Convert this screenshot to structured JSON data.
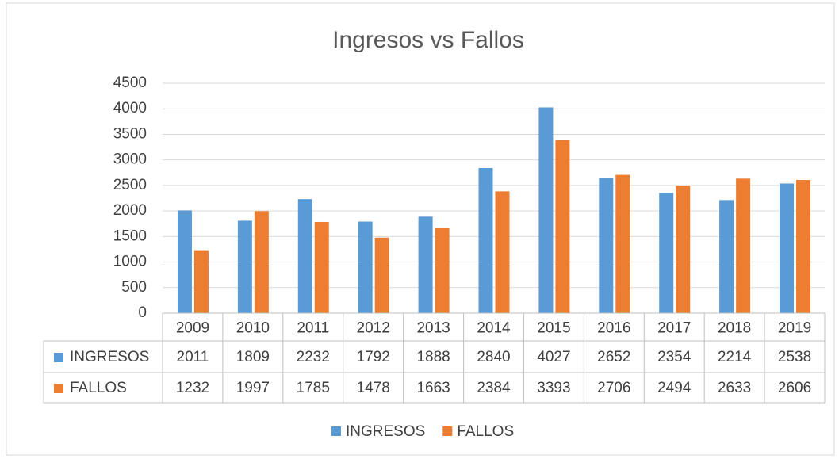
{
  "chart_data": {
    "type": "bar",
    "title": "Ingresos vs Fallos",
    "categories": [
      "2009",
      "2010",
      "2011",
      "2012",
      "2013",
      "2014",
      "2015",
      "2016",
      "2017",
      "2018",
      "2019"
    ],
    "series": [
      {
        "name": "INGRESOS",
        "color": "#5b9bd5",
        "values": [
          2011,
          1809,
          2232,
          1792,
          1888,
          2840,
          4027,
          2652,
          2354,
          2214,
          2538
        ]
      },
      {
        "name": "FALLOS",
        "color": "#ed7d31",
        "values": [
          1232,
          1997,
          1785,
          1478,
          1663,
          2384,
          3393,
          2706,
          2494,
          2633,
          2606
        ]
      }
    ],
    "ylim": [
      0,
      4500
    ],
    "yticks": [
      0,
      500,
      1000,
      1500,
      2000,
      2500,
      3000,
      3500,
      4000,
      4500
    ],
    "grid": true,
    "legend": "bottom"
  }
}
